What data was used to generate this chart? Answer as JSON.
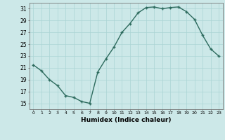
{
  "x": [
    0,
    1,
    2,
    3,
    4,
    5,
    6,
    7,
    8,
    9,
    10,
    11,
    12,
    13,
    14,
    15,
    16,
    17,
    18,
    19,
    20,
    21,
    22,
    23
  ],
  "y": [
    21.5,
    20.5,
    19.0,
    18.0,
    16.3,
    16.0,
    15.3,
    15.0,
    20.3,
    22.5,
    24.5,
    27.0,
    28.5,
    30.3,
    31.2,
    31.3,
    31.0,
    31.2,
    31.3,
    30.5,
    29.2,
    26.5,
    24.2,
    23.0
  ],
  "xlabel": "Humidex (Indice chaleur)",
  "ylim": [
    14,
    32
  ],
  "xlim": [
    -0.5,
    23.5
  ],
  "yticks": [
    15,
    17,
    19,
    21,
    23,
    25,
    27,
    29,
    31
  ],
  "xticks": [
    0,
    1,
    2,
    3,
    4,
    5,
    6,
    7,
    8,
    9,
    10,
    11,
    12,
    13,
    14,
    15,
    16,
    17,
    18,
    19,
    20,
    21,
    22,
    23
  ],
  "line_color": "#2d6b5e",
  "marker_color": "#2d6b5e",
  "bg_color": "#cce8e8",
  "grid_color": "#aad4d4"
}
